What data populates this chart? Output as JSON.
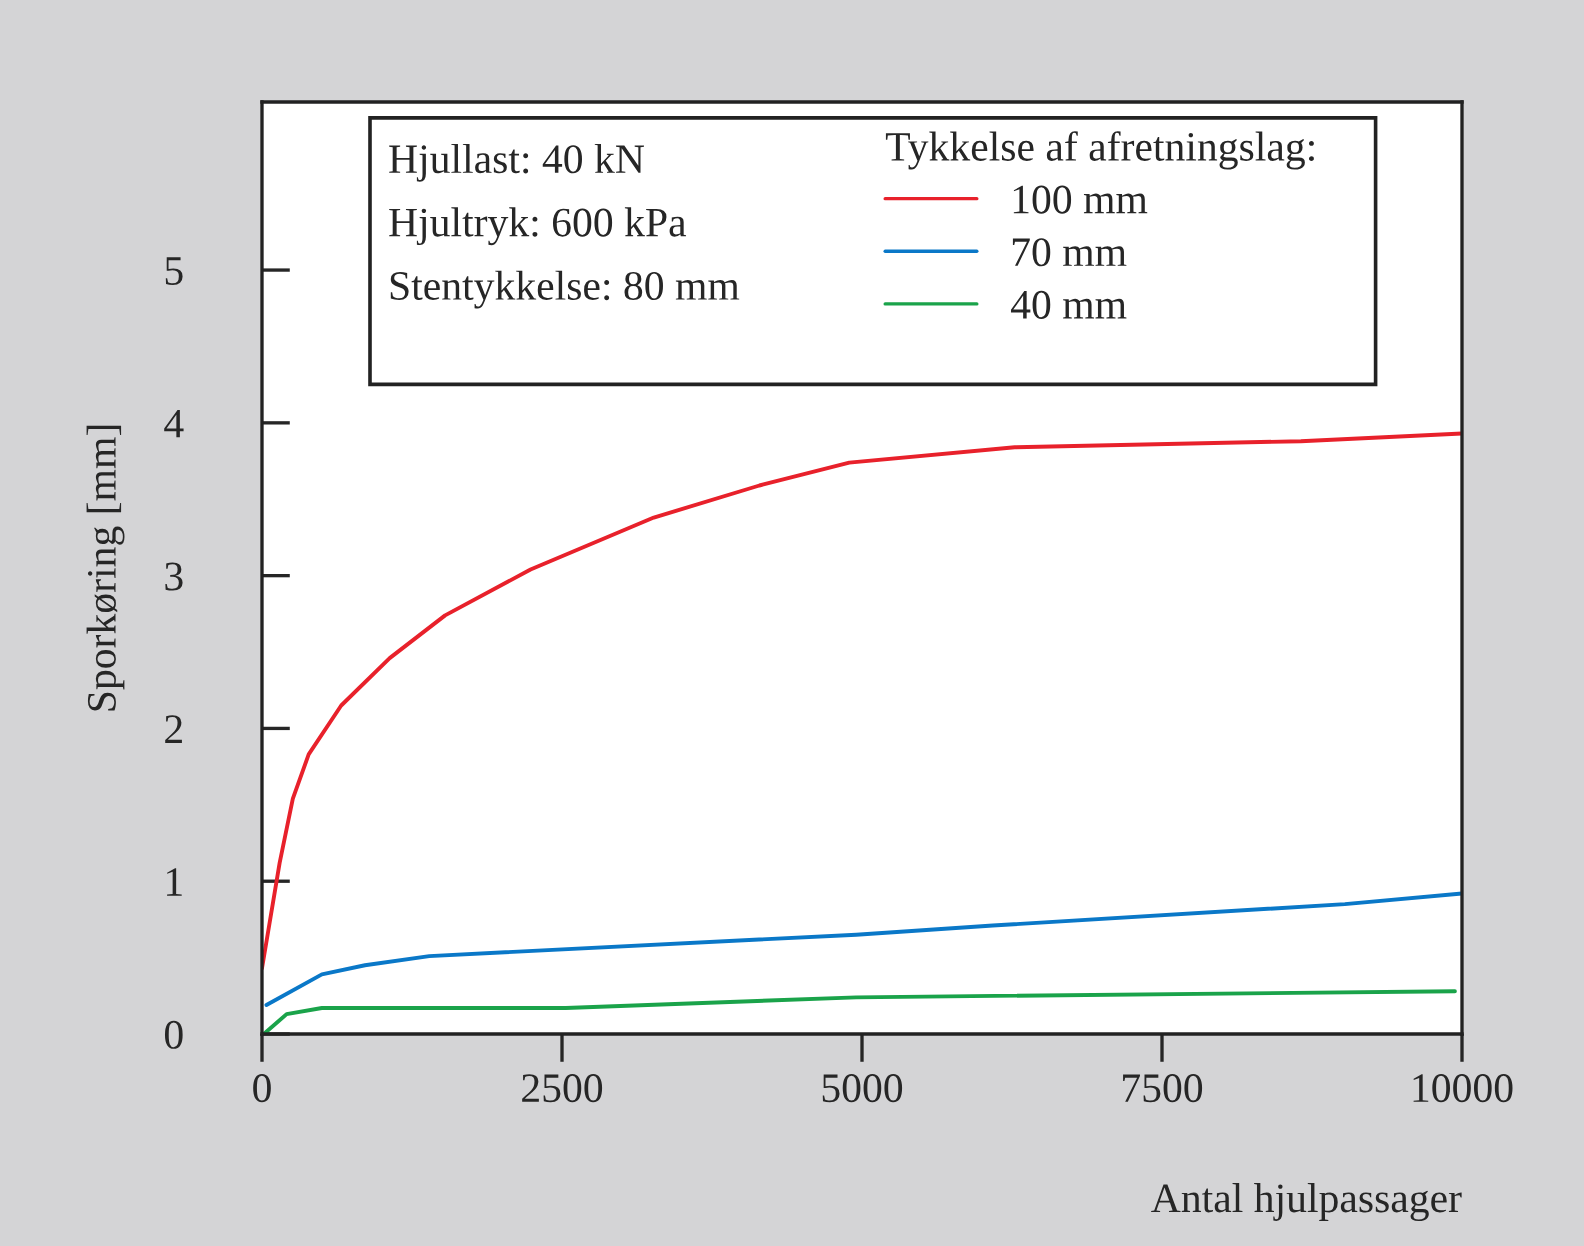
{
  "chart_data": {
    "type": "line",
    "xlabel": "Antal hjulpassager",
    "ylabel": "Sporkøring [mm]",
    "legend_title": "Tykkelse af afretningslag:",
    "annotations": [
      "Hjullast: 40 kN",
      "Hjultryk: 600 kPa",
      "Stentykkelse: 80 mm"
    ],
    "series": [
      {
        "name": "100 mm",
        "color": "#e8212b",
        "x": [
          0,
          147,
          257,
          389,
          660,
          1064,
          1526,
          2238,
          3265,
          4145,
          4894,
          6273,
          8657,
          10000
        ],
        "values": [
          0.43,
          1.12,
          1.54,
          1.83,
          2.15,
          2.46,
          2.74,
          3.04,
          3.38,
          3.59,
          3.74,
          3.84,
          3.88,
          3.93
        ]
      },
      {
        "name": "70 mm",
        "color": "#0a78c8",
        "x": [
          37,
          499,
          858,
          1394,
          4952,
          6090,
          9024,
          10000
        ],
        "values": [
          0.19,
          0.39,
          0.45,
          0.51,
          0.65,
          0.71,
          0.85,
          0.92
        ]
      },
      {
        "name": "40 mm",
        "color": "#1aa34a",
        "x": [
          15,
          205,
          499,
          2531,
          4952,
          9941
        ],
        "values": [
          0,
          0.13,
          0.17,
          0.17,
          0.24,
          0.28
        ]
      }
    ],
    "xlim": [
      0,
      10000
    ],
    "ylim": [
      0,
      6.1
    ],
    "xticks": [
      0,
      2500,
      5000,
      7500,
      10000
    ],
    "yticks": [
      0,
      1,
      2,
      3,
      4,
      5
    ],
    "grid": false,
    "legend": "top",
    "marker": "none",
    "line_style": "solid"
  }
}
